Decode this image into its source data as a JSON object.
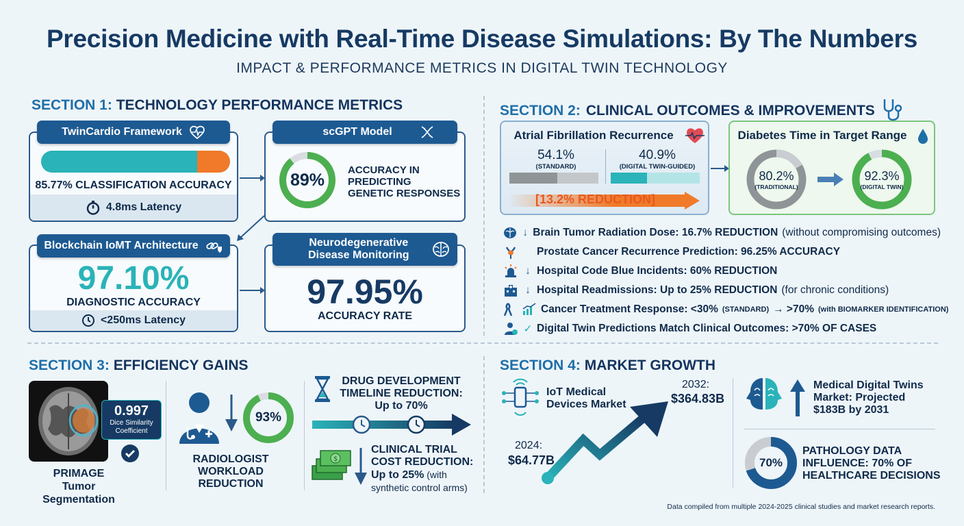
{
  "header": {
    "title": "Precision Medicine with Real-Time Disease Simulations: By The Numbers",
    "subtitle": "IMPACT & PERFORMANCE METRICS IN DIGITAL TWIN TECHNOLOGY"
  },
  "section1": {
    "prefix": "SECTION 1:",
    "title": "TECHNOLOGY PERFORMANCE METRICS",
    "twincardio": {
      "label": "TwinCardio Framework",
      "metric": "85.77% CLASSIFICATION ACCURACY",
      "latency": "4.8ms Latency",
      "progress": 0.8577
    },
    "scgpt": {
      "label": "scGPT Model",
      "value": "89%",
      "progress": 0.89,
      "desc": [
        "ACCURACY IN",
        "PREDICTING",
        "GENETIC RESPONSES"
      ]
    },
    "blockchain": {
      "label": "Blockchain IoMT Architecture",
      "value": "97.10%",
      "metric": "DIAGNOSTIC ACCURACY",
      "latency": "<250ms Latency"
    },
    "neuro": {
      "label": [
        "Neurodegenerative",
        "Disease Monitoring"
      ],
      "value": "97.95%",
      "metric": "ACCURACY RATE"
    }
  },
  "section2": {
    "prefix": "SECTION 2:",
    "title": "CLINICAL OUTCOMES & IMPROVEMENTS",
    "afib": {
      "label": "Atrial Fibrillation Recurrence",
      "standard_value": "54.1%",
      "standard_label": "(STANDARD)",
      "twin_value": "40.9%",
      "twin_label": "(DIGITAL TWIN-GUIDED)",
      "standard_fill": 0.541,
      "twin_fill": 0.409,
      "reduction": "[13.2% REDUCTION]"
    },
    "diabetes": {
      "label": "Diabetes Time in Target Range",
      "traditional_value": "80.2%",
      "traditional_label": "(TRADITIONAL)",
      "twin_value": "92.3%",
      "twin_label": "(DIGITAL TWIN)",
      "traditional_progress": 0.802,
      "twin_progress": 0.923
    },
    "items": [
      {
        "icon": "brain-icon",
        "arrow": "↓",
        "bold": "Brain Tumor Radiation Dose: 16.7% REDUCTION",
        "normal": " (without compromising outcomes)",
        "small": ""
      },
      {
        "icon": "prostate-icon",
        "arrow": "",
        "bold": "Prostate Cancer Recurrence Prediction: 96.25% ACCURACY",
        "normal": "",
        "small": ""
      },
      {
        "icon": "alarm-icon",
        "arrow": "↓",
        "bold": "Hospital Code Blue Incidents: 60% REDUCTION",
        "normal": "",
        "small": ""
      },
      {
        "icon": "hospital-icon",
        "arrow": "↓",
        "bold": "Hospital Readmissions: Up to 25% REDUCTION",
        "normal": " (for chronic conditions)",
        "small": ""
      },
      {
        "icon": "ribbon-icon",
        "arrow": "",
        "bold": "Cancer Treatment Response: <30%",
        "normal": "",
        "small": " (STANDARD) ",
        "bold2": "→ >70%",
        "small2": " (with BIOMARKER IDENTIFICATION)"
      },
      {
        "icon": "doctor-check-icon",
        "arrow": "✓",
        "bold": "Digital Twin Predictions Match Clinical Outcomes: >70% OF CASES",
        "normal": "",
        "small": ""
      }
    ]
  },
  "section3": {
    "prefix": "SECTION 3:",
    "title": "EFFICIENCY GAINS",
    "primage": {
      "score": "0.997",
      "score_label": [
        "Dice Similarity",
        "Coefficient"
      ],
      "label": [
        "PRIMAGE",
        "Tumor Segmentation"
      ]
    },
    "radiologist": {
      "value": "93%",
      "progress": 0.93,
      "label": [
        "RADIOLOGIST",
        "WORKLOAD",
        "REDUCTION"
      ]
    },
    "drug": {
      "label": [
        "DRUG DEVELOPMENT",
        "TIMELINE REDUCTION:",
        "Up to 70%"
      ]
    },
    "trial": {
      "label": [
        "CLINICAL TRIAL",
        "COST REDUCTION:"
      ],
      "bold": "Up to 25%",
      "normal": " (with",
      "normal2": "synthetic control arms)"
    }
  },
  "section4": {
    "prefix": "SECTION 4:",
    "title": "MARKET GROWTH",
    "iot": {
      "label": [
        "IoT Medical",
        "Devices Market"
      ],
      "start_year": "2024:",
      "start_value": "$64.77B",
      "end_year": "2032:",
      "end_value": "$364.83B"
    },
    "twins": {
      "label": [
        "Medical Digital Twins",
        "Market: Projected",
        "$183B by 2031"
      ]
    },
    "pathology": {
      "value": "70%",
      "progress": 0.7,
      "label": [
        "PATHOLOGY DATA",
        "INFLUENCE: 70% OF",
        "HEALTHCARE DECISIONS"
      ]
    }
  },
  "footer": {
    "note": "Data compiled from multiple 2024-2025 clinical studies and market research reports."
  },
  "colors": {
    "navy": "#163a63",
    "blue": "#1d5a92",
    "teal": "#2ab3b8",
    "green": "#4caf50",
    "orange": "#f07a2a"
  }
}
